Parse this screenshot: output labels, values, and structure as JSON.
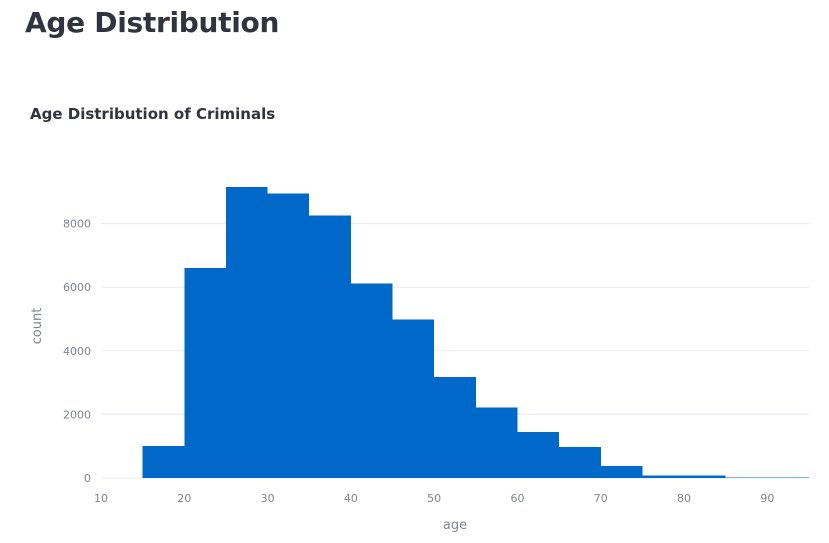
{
  "page": {
    "title": "Age Distribution"
  },
  "chart_data": {
    "type": "bar",
    "title": "Age Distribution of Criminals",
    "xlabel": "age",
    "ylabel": "count",
    "bins": [
      {
        "x0": 10,
        "x1": 15,
        "count": 0
      },
      {
        "x0": 15,
        "x1": 20,
        "count": 1000
      },
      {
        "x0": 20,
        "x1": 25,
        "count": 6600
      },
      {
        "x0": 25,
        "x1": 30,
        "count": 9150
      },
      {
        "x0": 30,
        "x1": 35,
        "count": 8950
      },
      {
        "x0": 35,
        "x1": 40,
        "count": 8250
      },
      {
        "x0": 40,
        "x1": 45,
        "count": 6120
      },
      {
        "x0": 45,
        "x1": 50,
        "count": 4980
      },
      {
        "x0": 50,
        "x1": 55,
        "count": 3170
      },
      {
        "x0": 55,
        "x1": 60,
        "count": 2220
      },
      {
        "x0": 60,
        "x1": 65,
        "count": 1450
      },
      {
        "x0": 65,
        "x1": 70,
        "count": 970
      },
      {
        "x0": 70,
        "x1": 75,
        "count": 370
      },
      {
        "x0": 75,
        "x1": 80,
        "count": 80
      },
      {
        "x0": 80,
        "x1": 85,
        "count": 80
      },
      {
        "x0": 85,
        "x1": 90,
        "count": 20
      },
      {
        "x0": 90,
        "x1": 95,
        "count": 20
      }
    ],
    "xlim": [
      10,
      95
    ],
    "ylim": [
      0,
      10000
    ],
    "x_ticks": [
      10,
      20,
      30,
      40,
      50,
      60,
      70,
      80,
      90
    ],
    "y_ticks": [
      0,
      2000,
      4000,
      6000,
      8000
    ],
    "grid": true,
    "bar_color": "#0068c9",
    "grid_color": "#e6eaf1"
  }
}
